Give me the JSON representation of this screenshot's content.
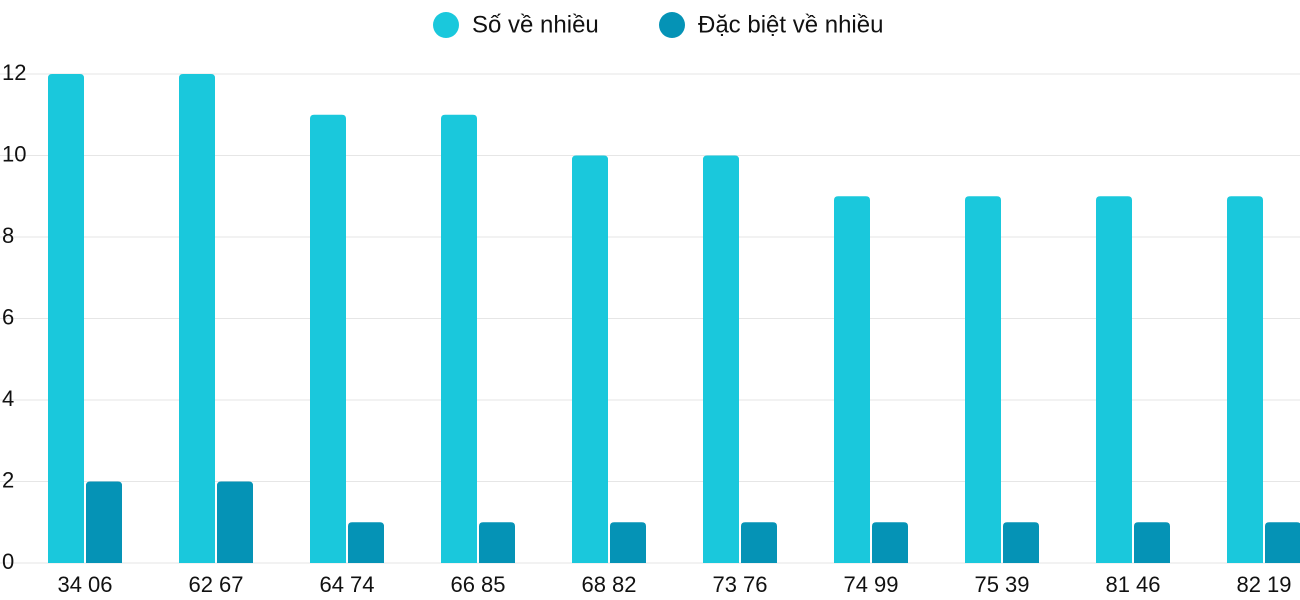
{
  "chart_data": {
    "type": "bar",
    "categories": [
      "34 06",
      "62 67",
      "64 74",
      "66 85",
      "68 82",
      "73 76",
      "74 99",
      "75 39",
      "81 46",
      "82 19"
    ],
    "series": [
      {
        "name": "Số về nhiều",
        "color": "#1ac8dc",
        "values": [
          12,
          12,
          11,
          11,
          10,
          10,
          9,
          9,
          9,
          9
        ]
      },
      {
        "name": "Đặc biệt về nhiều",
        "color": "#0593b6",
        "values": [
          2,
          2,
          1,
          1,
          1,
          1,
          1,
          1,
          1,
          1
        ]
      }
    ],
    "ylim": [
      0,
      12
    ],
    "yticks": [
      0,
      2,
      4,
      6,
      8,
      10,
      12
    ],
    "grid": true,
    "legend": "top"
  }
}
